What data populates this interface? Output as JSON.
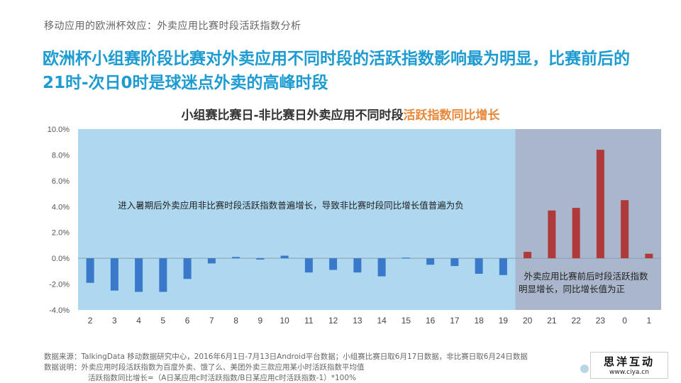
{
  "header": {
    "subtitle": "移动应用的欧洲杯效应：外卖应用比赛时段活跃指数分析",
    "headline_line1": "欧洲杯小组赛阶段比赛对外卖应用不同时段的活跃指数影响最为明显，比赛前后的",
    "headline_line2": "21时-次日0时是球迷点外卖的高峰时段"
  },
  "chart_title": {
    "main": "小组赛比赛日-非比赛日外卖应用不同时段",
    "highlight": "活跃指数同比增长",
    "highlight_color": "#e8883b"
  },
  "chart_data": {
    "type": "bar",
    "categories": [
      "2",
      "3",
      "4",
      "5",
      "6",
      "7",
      "8",
      "9",
      "10",
      "11",
      "12",
      "13",
      "14",
      "15",
      "16",
      "17",
      "18",
      "19",
      "20",
      "21",
      "22",
      "23",
      "0",
      "1"
    ],
    "values": [
      -1.9,
      -2.5,
      -2.6,
      -2.6,
      -1.6,
      -0.4,
      0.1,
      -0.1,
      0.2,
      -1.1,
      -0.9,
      -1.1,
      -1.4,
      0.05,
      -0.5,
      -0.6,
      -1.2,
      -1.3,
      0.5,
      3.7,
      3.9,
      8.4,
      4.5,
      0.35
    ],
    "ylim": [
      -4,
      10
    ],
    "yticks": [
      "10.0%",
      "8.0%",
      "6.0%",
      "4.0%",
      "2.0%",
      "0.0%",
      "-2.0%",
      "-4.0%"
    ],
    "ytick_values": [
      10,
      8,
      6,
      4,
      2,
      0,
      -2,
      -4
    ],
    "regions": [
      {
        "from": "2",
        "to": "19",
        "color": "#add8f0",
        "bar_color": "#3a78c9",
        "annotation": "进入暑期后外卖应用非比赛时段活跃指数普遍增长，导致非比赛时段同比增长值普遍为负"
      },
      {
        "from": "20",
        "to": "1",
        "color": "#a9b6cc",
        "bar_color": "#b03a3a",
        "annotation_line1": "外卖应用比赛前后时段活跃指数",
        "annotation_line2": "明显增长，同比增长值为正"
      }
    ]
  },
  "footnotes": {
    "source": "数据来源：TalkingData 移动数据研究中心，2016年6月1日-7月13日Android平台数据；小组赛比赛日取6月17日数据，非比赛日取6月24日数据",
    "note1": "数据说明：外卖应用时段活跃指数为百度外卖、饿了么、美团外卖三款应用某小时活跃指数平均值",
    "note2": "活跃指数同比增长=（A日某应用c时活跃指数/B日某应用c时活跃指数-1）*100%"
  },
  "watermark": {
    "name": "思洋互动",
    "url": "www.ciya.cn"
  }
}
